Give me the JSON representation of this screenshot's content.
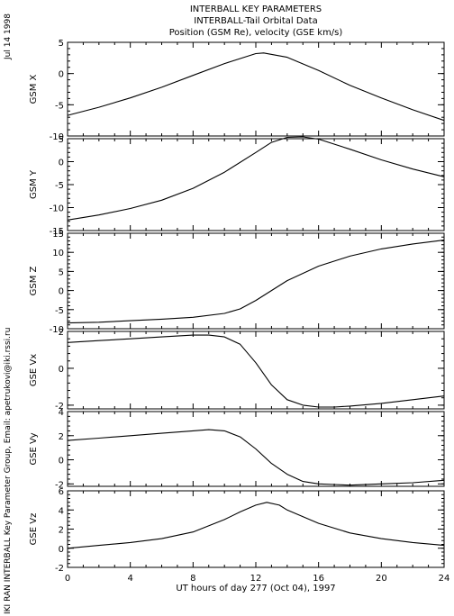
{
  "header": {
    "title": "INTERBALL KEY PARAMETERS",
    "subtitle": "INTERBALL-Tail Orbital Data",
    "units": "Position (GSM Re), velocity (GSE km/s)",
    "date_stamp": "Jul 14 1998",
    "credit": "IKI RAN INTERBALL Key Parameter Group, Email: apetrukovi@iki.rssi.ru"
  },
  "chart_data": [
    {
      "type": "line",
      "ylabel": "GSM X",
      "ylim": [
        -10,
        5
      ],
      "yticks": [
        5,
        0,
        -5,
        -10
      ],
      "ytick_labels": [
        "5",
        "0",
        "-5",
        "-10"
      ],
      "x": [
        0,
        2,
        4,
        6,
        8,
        10,
        12,
        12.5,
        14,
        16,
        18,
        20,
        22,
        24
      ],
      "y": [
        -6.7,
        -5.4,
        -3.9,
        -2.2,
        -0.3,
        1.6,
        3.2,
        3.3,
        2.6,
        0.5,
        -1.9,
        -3.9,
        -5.8,
        -7.5
      ]
    },
    {
      "type": "line",
      "ylabel": "GSM Y",
      "ylim": [
        -15,
        5
      ],
      "yticks": [
        5,
        0,
        -5,
        -10,
        -15
      ],
      "ytick_labels": [
        "5",
        "0",
        "-5",
        "-10",
        "-15"
      ],
      "x": [
        0,
        2,
        4,
        6,
        8,
        10,
        12,
        13,
        14,
        15,
        16,
        18,
        20,
        22,
        24
      ],
      "y": [
        -12.7,
        -11.6,
        -10.2,
        -8.4,
        -5.8,
        -2.3,
        2.0,
        4.2,
        5.3,
        5.4,
        4.9,
        2.7,
        0.4,
        -1.6,
        -3.3
      ]
    },
    {
      "type": "line",
      "ylabel": "GSM Z",
      "ylim": [
        -10,
        15
      ],
      "yticks": [
        15,
        10,
        5,
        0,
        -5,
        -10
      ],
      "ytick_labels": [
        "15",
        "10",
        "5",
        "0",
        "-5",
        "-10"
      ],
      "x": [
        0,
        2,
        4,
        6,
        8,
        10,
        11,
        12,
        13,
        14,
        16,
        18,
        20,
        22,
        24
      ],
      "y": [
        -8.5,
        -8.3,
        -7.9,
        -7.5,
        -7.0,
        -6.0,
        -4.8,
        -2.6,
        0.0,
        2.6,
        6.4,
        9.0,
        10.9,
        12.2,
        13.2
      ]
    },
    {
      "type": "line",
      "ylabel": "GSE Vx",
      "ylim": [
        -2.2,
        2
      ],
      "yticks": [
        2,
        0,
        -2
      ],
      "ytick_labels": [
        "2",
        "0",
        "-2"
      ],
      "x": [
        0,
        2,
        4,
        6,
        8,
        9,
        10,
        11,
        12,
        13,
        14,
        15,
        16,
        17,
        18,
        20,
        22,
        24
      ],
      "y": [
        1.4,
        1.5,
        1.6,
        1.7,
        1.8,
        1.8,
        1.7,
        1.3,
        0.3,
        -0.9,
        -1.7,
        -2.0,
        -2.1,
        -2.1,
        -2.05,
        -1.9,
        -1.7,
        -1.5
      ]
    },
    {
      "type": "line",
      "ylabel": "GSE Vy",
      "ylim": [
        -2.2,
        4
      ],
      "yticks": [
        4,
        2,
        0,
        -2
      ],
      "ytick_labels": [
        "4",
        "2",
        "0",
        "-2"
      ],
      "x": [
        0,
        2,
        4,
        6,
        8,
        9,
        10,
        11,
        12,
        13,
        14,
        15,
        16,
        17,
        18,
        20,
        22,
        24
      ],
      "y": [
        1.6,
        1.8,
        2.0,
        2.2,
        2.4,
        2.5,
        2.4,
        1.9,
        0.9,
        -0.3,
        -1.2,
        -1.8,
        -2.0,
        -2.05,
        -2.1,
        -2.0,
        -1.9,
        -1.7
      ]
    },
    {
      "type": "line",
      "ylabel": "GSE Vz",
      "ylim": [
        -2,
        6
      ],
      "yticks": [
        6,
        4,
        2,
        0,
        -2
      ],
      "ytick_labels": [
        "6",
        "4",
        "2",
        "0",
        "-2"
      ],
      "x": [
        0,
        2,
        4,
        6,
        8,
        10,
        11,
        12,
        12.7,
        13.5,
        14,
        16,
        18,
        20,
        22,
        24
      ],
      "y": [
        0.0,
        0.3,
        0.6,
        1.0,
        1.7,
        3.0,
        3.8,
        4.5,
        4.8,
        4.5,
        4.0,
        2.6,
        1.6,
        1.0,
        0.6,
        0.3
      ]
    }
  ],
  "xaxis": {
    "label": "UT hours of day 277 (Oct 04), 1997",
    "xlim": [
      0,
      24
    ],
    "ticks": [
      0,
      4,
      8,
      12,
      16,
      20,
      24
    ],
    "tick_labels": [
      "0",
      "4",
      "8",
      "12",
      "16",
      "20",
      "24"
    ]
  }
}
